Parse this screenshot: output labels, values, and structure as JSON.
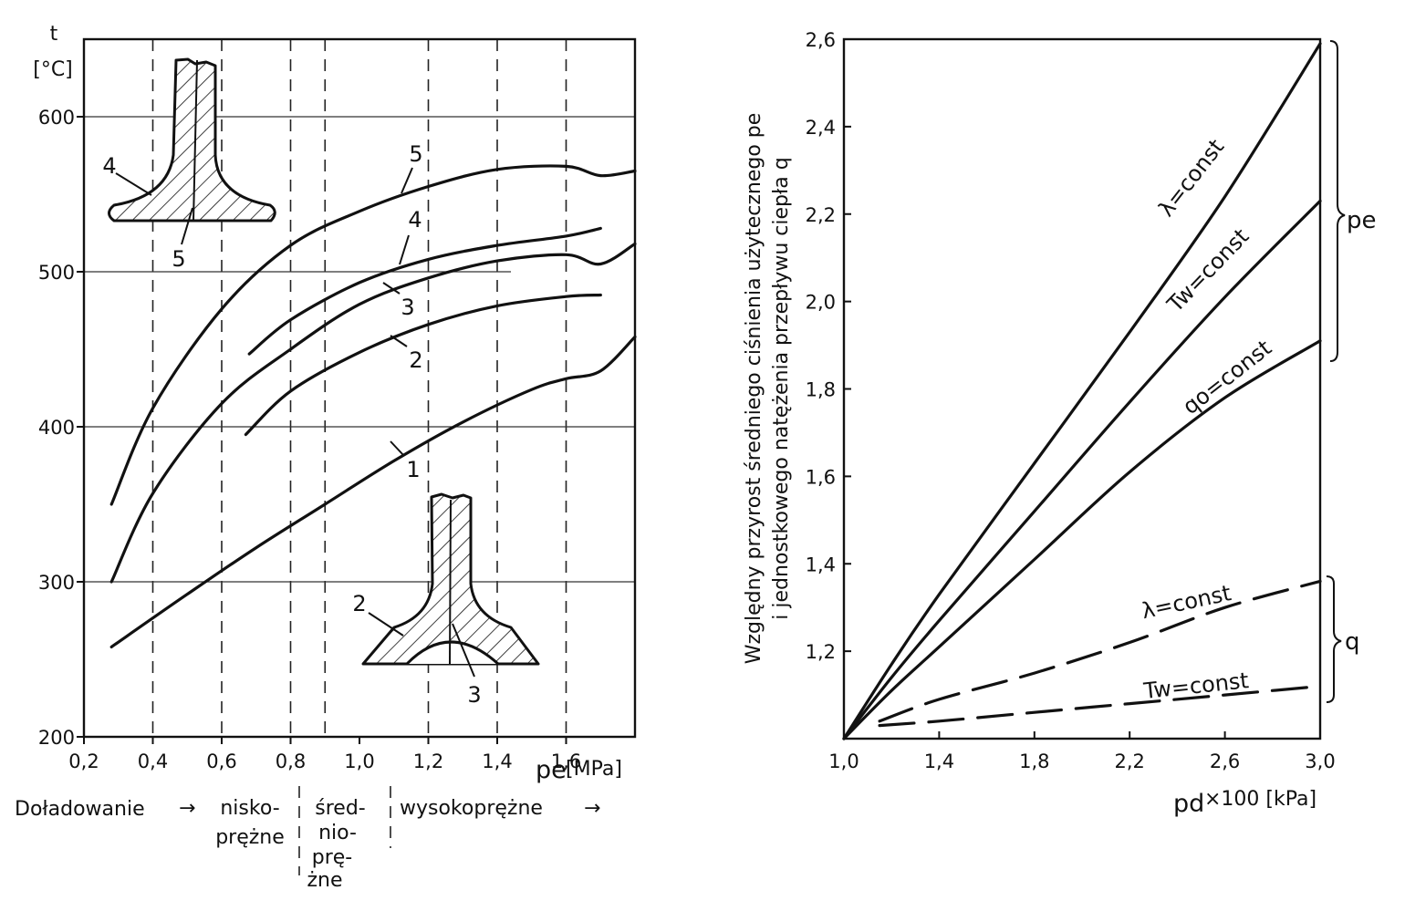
{
  "chart_data": [
    {
      "type": "line",
      "title": "",
      "xlabel": "pe [MPa]",
      "ylabel": "t [°C]",
      "y_unit_label": "[°C]",
      "y_symbol": "t",
      "x_symbol": "pe",
      "x_unit_label": "[MPa]",
      "xlim": [
        0.2,
        1.8
      ],
      "ylim": [
        200,
        650
      ],
      "x_ticks": [
        "0,2",
        "0,4",
        "0,6",
        "0,8",
        "1,0",
        "1,2",
        "1,4",
        "1,6"
      ],
      "x_tick_values": [
        0.2,
        0.4,
        0.6,
        0.8,
        1.0,
        1.2,
        1.4,
        1.6
      ],
      "y_ticks": [
        "200",
        "300",
        "400",
        "500",
        "600"
      ],
      "y_tick_values": [
        200,
        300,
        400,
        500,
        600
      ],
      "grid": true,
      "series": [
        {
          "name": "1",
          "x": [
            0.28,
            0.5,
            0.7,
            0.9,
            1.1,
            1.3,
            1.5,
            1.6,
            1.7,
            1.8
          ],
          "y": [
            258,
            292,
            322,
            350,
            378,
            403,
            424,
            431,
            436,
            458
          ]
        },
        {
          "name": "2",
          "x": [
            0.67,
            0.8,
            1.0,
            1.2,
            1.4,
            1.6,
            1.7
          ],
          "y": [
            395,
            423,
            448,
            466,
            478,
            484,
            485
          ]
        },
        {
          "name": "3",
          "x": [
            0.28,
            0.4,
            0.6,
            0.8,
            1.0,
            1.2,
            1.4,
            1.6,
            1.7,
            1.8
          ],
          "y": [
            300,
            357,
            415,
            450,
            479,
            496,
            507,
            511,
            505,
            518
          ]
        },
        {
          "name": "4",
          "x": [
            0.68,
            0.8,
            1.0,
            1.2,
            1.4,
            1.6,
            1.7
          ],
          "y": [
            447,
            469,
            493,
            508,
            517,
            523,
            528
          ]
        },
        {
          "name": "5",
          "x": [
            0.28,
            0.4,
            0.6,
            0.8,
            1.0,
            1.2,
            1.4,
            1.6,
            1.7,
            1.8
          ],
          "y": [
            350,
            412,
            476,
            517,
            539,
            555,
            566,
            568,
            562,
            565
          ]
        }
      ],
      "series_labels": [
        "1",
        "2",
        "3",
        "4",
        "5"
      ],
      "inset_labels": {
        "top": [
          "4",
          "5"
        ],
        "bottom": [
          "2",
          "3"
        ]
      },
      "annotation": {
        "lead": "Doładowanie",
        "arrow": "→",
        "zones": [
          {
            "lines": [
              "nisko-",
              "prężne"
            ]
          },
          {
            "lines": [
              "śred-",
              "nio-",
              "prę-",
              "żne"
            ]
          },
          {
            "lines": [
              "wysokoprężne"
            ]
          }
        ]
      }
    },
    {
      "type": "line",
      "title": "",
      "xlabel": "pd ×100 [kPa]",
      "ylabel": "Względny przyrost średniego ciśnienia użytecznego pe i jednostkowego natężenia przepływu ciepła q",
      "ylabel_lines": [
        "Względny przyrost średniego ciśnienia użytecznego pe",
        "i jednostkowego natężenia przepływu ciepła q"
      ],
      "x_symbol": "pd",
      "x_unit_label": "×100 [kPa]",
      "xlim": [
        1.0,
        3.0
      ],
      "ylim": [
        1.0,
        2.6
      ],
      "x_ticks": [
        "1,0",
        "1,4",
        "1,8",
        "2,2",
        "2,6",
        "3,0"
      ],
      "x_tick_values": [
        1.0,
        1.4,
        1.8,
        2.2,
        2.6,
        3.0
      ],
      "y_ticks": [
        "1,2",
        "1,4",
        "1,6",
        "1,8",
        "2,0",
        "2,2",
        "2,4",
        "2,6"
      ],
      "y_tick_values": [
        1.2,
        1.4,
        1.6,
        1.8,
        2.0,
        2.2,
        2.4,
        2.6
      ],
      "grid": false,
      "series": [
        {
          "name": "λ=const",
          "group": "pe",
          "style": "solid",
          "x": [
            1.0,
            1.2,
            1.4,
            1.8,
            2.2,
            2.6,
            3.0
          ],
          "y": [
            1.0,
            1.17,
            1.33,
            1.63,
            1.93,
            2.24,
            2.59
          ]
        },
        {
          "name": "Tw=const",
          "group": "pe",
          "style": "solid",
          "x": [
            1.0,
            1.2,
            1.4,
            1.8,
            2.2,
            2.6,
            3.0
          ],
          "y": [
            1.0,
            1.14,
            1.27,
            1.52,
            1.77,
            2.01,
            2.23
          ]
        },
        {
          "name": "qo=const",
          "group": "pe",
          "style": "solid",
          "x": [
            1.0,
            1.2,
            1.4,
            1.8,
            2.2,
            2.6,
            3.0
          ],
          "y": [
            1.0,
            1.11,
            1.21,
            1.41,
            1.61,
            1.78,
            1.91
          ]
        },
        {
          "name": "λ=const",
          "group": "q",
          "style": "dashed",
          "x": [
            1.15,
            1.4,
            1.8,
            2.2,
            2.6,
            3.0
          ],
          "y": [
            1.04,
            1.09,
            1.15,
            1.22,
            1.3,
            1.36
          ]
        },
        {
          "name": "Tw=const",
          "group": "q",
          "style": "dashed",
          "x": [
            1.15,
            1.4,
            1.8,
            2.2,
            2.6,
            3.0
          ],
          "y": [
            1.03,
            1.04,
            1.06,
            1.08,
            1.1,
            1.12
          ]
        }
      ],
      "brace_labels": {
        "pe": "pe",
        "q": "q"
      }
    }
  ]
}
